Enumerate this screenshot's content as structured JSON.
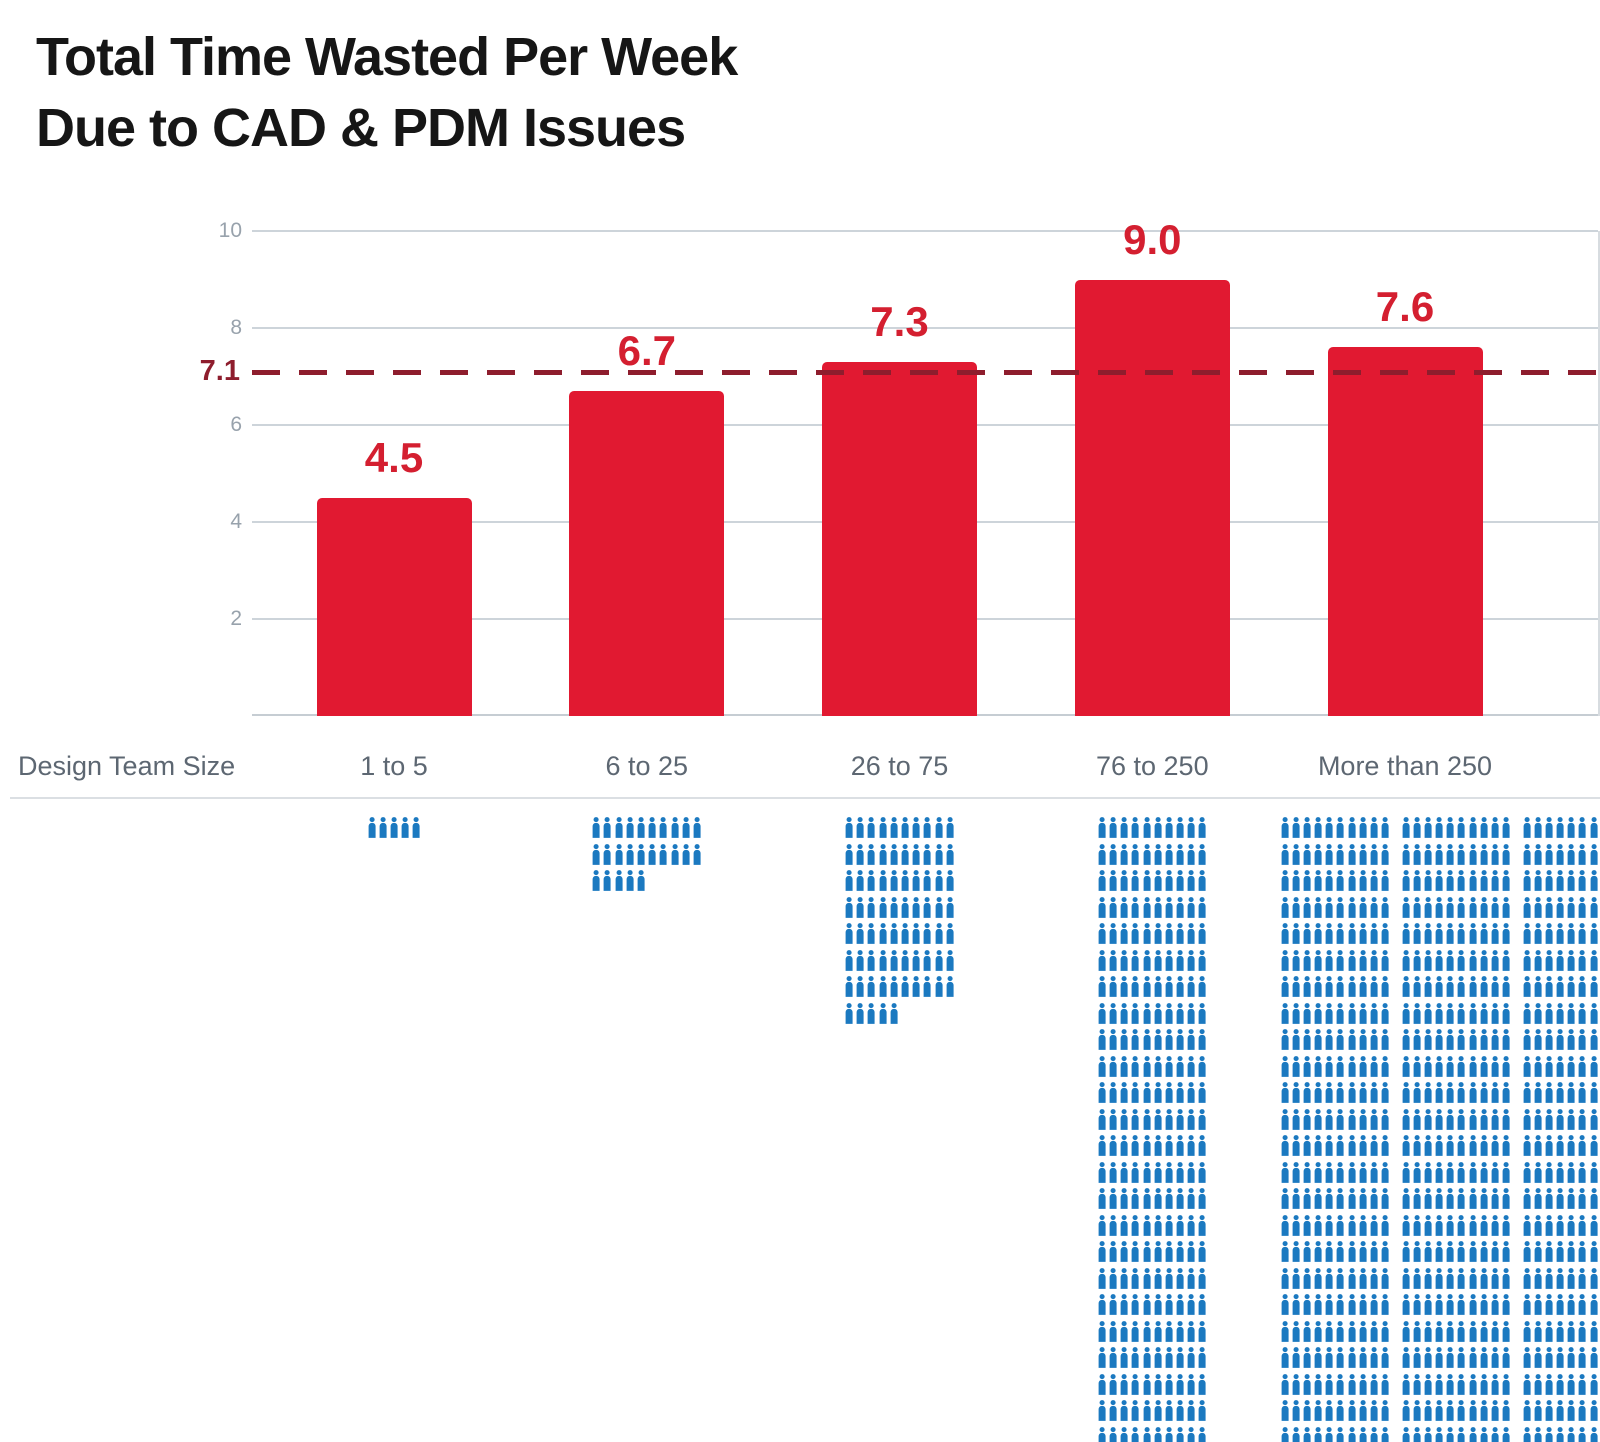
{
  "title": {
    "line1": "Total Time Wasted Per Week",
    "line2": "Due to CAD & PDM Issues"
  },
  "chart_data": {
    "type": "bar",
    "title": "Total Time Wasted Per Week Due to CAD & PDM Issues",
    "xlabel": "Design Team Size",
    "ylabel": "",
    "ylim": [
      0,
      10
    ],
    "y_ticks": [
      2,
      4,
      6,
      8,
      10
    ],
    "grid": true,
    "legend": "none",
    "categories": [
      "1 to 5",
      "6 to 25",
      "26 to 75",
      "76 to 250",
      "More than 250"
    ],
    "values": [
      4.5,
      6.7,
      7.3,
      9.0,
      7.6
    ],
    "value_labels": [
      "4.5",
      "6.7",
      "7.3",
      "9.0",
      "7.6"
    ],
    "average_line": {
      "value": 7.1,
      "label": "7.1",
      "style": "dashed",
      "color": "#8e1d2d"
    },
    "bar_color": "#e11931",
    "value_label_color": "#d41f30",
    "pictogram": {
      "icon": "person-icon",
      "color": "#1b79c0",
      "columns_per_row": 10,
      "groups": [
        {
          "category": "1 to 5",
          "people": 5,
          "blocks": 1
        },
        {
          "category": "6 to 25",
          "people": 25,
          "blocks": 1
        },
        {
          "category": "26 to 75",
          "people": 75,
          "blocks": 1
        },
        {
          "category": "76 to 250",
          "people": 250,
          "blocks": 1
        },
        {
          "category": "More than 250",
          "people_per_block": 250,
          "blocks": 3
        }
      ]
    },
    "colors": {
      "axis_tick": "#98a2ac",
      "category_label": "#5d6772",
      "gridline": "#cdd4da",
      "title": "#161616"
    }
  }
}
